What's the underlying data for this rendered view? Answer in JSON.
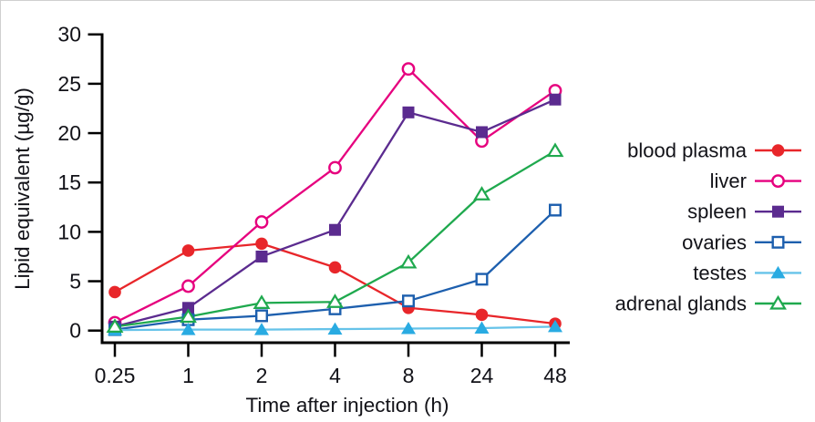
{
  "figure": {
    "background": "#ffffff",
    "crop_border_color": "#cfcfcf",
    "axis_color": "#000000",
    "text_color": "#121218"
  },
  "chart_data": {
    "type": "line",
    "title": "",
    "xlabel": "Time after injection (h)",
    "ylabel": "Lipid equivalent (µg/g)",
    "x_axis_type": "categorical",
    "categories": [
      "0.25",
      "1",
      "2",
      "4",
      "8",
      "24",
      "48"
    ],
    "y_ticks": [
      0,
      5,
      10,
      15,
      20,
      25,
      30
    ],
    "ylim": [
      0,
      30
    ],
    "grid": false,
    "legend_position": "right-of-plot",
    "series": [
      {
        "name": "blood plasma",
        "color": "#e8262a",
        "line_color": "#e8262a",
        "marker": "circle-filled",
        "values": [
          3.9,
          8.1,
          8.8,
          6.4,
          2.3,
          1.6,
          0.7
        ]
      },
      {
        "name": "liver",
        "color": "#e6007e",
        "line_color": "#e6007e",
        "marker": "circle-open",
        "values": [
          0.8,
          4.5,
          11.0,
          16.5,
          26.5,
          19.2,
          24.3
        ]
      },
      {
        "name": "spleen",
        "color": "#5b2b8f",
        "line_color": "#5b2b8f",
        "marker": "square-filled",
        "values": [
          0.4,
          2.3,
          7.5,
          10.2,
          22.1,
          20.1,
          23.4
        ]
      },
      {
        "name": "ovaries",
        "color": "#1d5fae",
        "line_color": "#1d5fae",
        "marker": "square-open",
        "values": [
          0.1,
          1.1,
          1.5,
          2.2,
          3.0,
          5.2,
          12.2
        ]
      },
      {
        "name": "testes",
        "color": "#29abe2",
        "line_color": "#66c3e9",
        "marker": "triangle-filled",
        "values": [
          0.05,
          0.1,
          0.1,
          0.15,
          0.2,
          0.25,
          0.4
        ]
      },
      {
        "name": "adrenal glands",
        "color": "#1fa94e",
        "line_color": "#1fa94e",
        "marker": "triangle-open",
        "values": [
          0.4,
          1.4,
          2.8,
          2.9,
          6.9,
          13.8,
          18.2
        ]
      }
    ]
  }
}
